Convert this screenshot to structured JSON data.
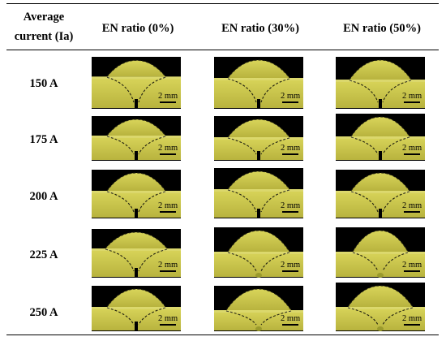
{
  "table": {
    "corner_header_line1": "Average",
    "corner_header_line2": "current (Ia)",
    "columns": [
      "EN ratio (0%)",
      "EN ratio (30%)",
      "EN ratio (50%)"
    ],
    "rows": [
      "150 A",
      "175 A",
      "200 A",
      "225 A",
      "250 A"
    ],
    "scale_bar_label": "2 mm"
  },
  "colors": {
    "specimen_fill": "#c8c44a",
    "specimen_dark": "#9a9a2c",
    "background": "#000000",
    "fusion_line": "#202010"
  }
}
